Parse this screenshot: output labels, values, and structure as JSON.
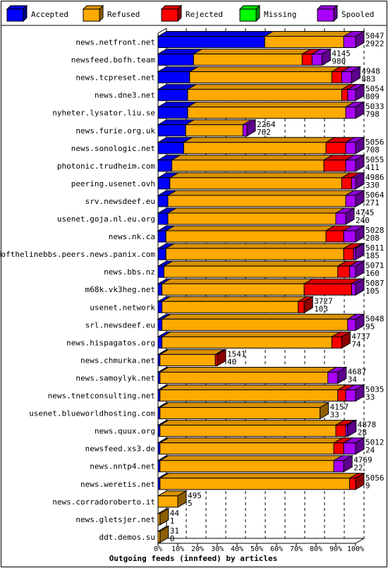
{
  "chart_data": {
    "type": "bar",
    "orientation": "horizontal",
    "stacked": true,
    "title": "",
    "xlabel": "Outgoing feeds (innfeed) by articles",
    "ylabel": "",
    "xlim": [
      0,
      100
    ],
    "x_unit": "%",
    "x_ticks": [
      "0%",
      "10%",
      "20%",
      "30%",
      "40%",
      "50%",
      "60%",
      "70%",
      "80%",
      "90%",
      "100%"
    ],
    "grid": "vertical-dashed",
    "legend_position": "top",
    "legend": [
      {
        "name": "Accepted",
        "color": "#0000ff"
      },
      {
        "name": "Refused",
        "color": "#ffaa00"
      },
      {
        "name": "Rejected",
        "color": "#ff0000"
      },
      {
        "name": "Missing",
        "color": "#00ff00"
      },
      {
        "name": "Spooled",
        "color": "#aa00ff"
      }
    ],
    "rows": [
      {
        "label": "news.netfront.net",
        "total": "5047",
        "accepted": "2922",
        "pct": [
          54,
          40,
          0,
          0,
          6
        ]
      },
      {
        "label": "newsfeed.bofh.team",
        "total": "4145",
        "accepted": "980",
        "pct": [
          18,
          55,
          5,
          0,
          5
        ]
      },
      {
        "label": "news.tcpreset.net",
        "total": "4948",
        "accepted": "883",
        "pct": [
          16,
          72,
          5,
          0,
          5
        ]
      },
      {
        "label": "news.dne3.net",
        "total": "5054",
        "accepted": "809",
        "pct": [
          15,
          78,
          3,
          0,
          4
        ]
      },
      {
        "label": "nyheter.lysator.liu.se",
        "total": "5033",
        "accepted": "798",
        "pct": [
          15,
          80,
          0,
          0,
          5
        ]
      },
      {
        "label": "news.furie.org.uk",
        "total": "2264",
        "accepted": "762",
        "pct": [
          14,
          29,
          0,
          0,
          2
        ]
      },
      {
        "label": "news.sonologic.net",
        "total": "5056",
        "accepted": "708",
        "pct": [
          13,
          72,
          10,
          0,
          5
        ]
      },
      {
        "label": "photonic.trudheim.com",
        "total": "5055",
        "accepted": "411",
        "pct": [
          7,
          77,
          11,
          0,
          5
        ]
      },
      {
        "label": "peering.usenet.ovh",
        "total": "4986",
        "accepted": "330",
        "pct": [
          6,
          87,
          5,
          0,
          2
        ]
      },
      {
        "label": "srv.newsdeef.eu",
        "total": "5064",
        "accepted": "271",
        "pct": [
          5,
          90,
          0,
          0,
          5
        ]
      },
      {
        "label": "usenet.goja.nl.eu.org",
        "total": "4745",
        "accepted": "240",
        "pct": [
          5,
          85,
          0,
          0,
          5
        ]
      },
      {
        "label": "news.nk.ca",
        "total": "5028",
        "accepted": "208",
        "pct": [
          4,
          81,
          9,
          0,
          6
        ]
      },
      {
        "label": "endofthelinebbs.peers.news.panix.com",
        "total": "5011",
        "accepted": "185",
        "pct": [
          4,
          90,
          5,
          0,
          1
        ]
      },
      {
        "label": "news.bbs.nz",
        "total": "5071",
        "accepted": "160",
        "pct": [
          3,
          88,
          6,
          0,
          3
        ]
      },
      {
        "label": "m68k.vk3heg.net",
        "total": "5087",
        "accepted": "105",
        "pct": [
          2,
          72,
          24,
          0,
          2
        ]
      },
      {
        "label": "usenet.network",
        "total": "3727",
        "accepted": "103",
        "pct": [
          2,
          69,
          3,
          0,
          0
        ]
      },
      {
        "label": "srl.newsdeef.eu",
        "total": "5048",
        "accepted": "95",
        "pct": [
          2,
          94,
          0,
          0,
          4
        ]
      },
      {
        "label": "news.hispagatos.org",
        "total": "4737",
        "accepted": "74",
        "pct": [
          2,
          86,
          5,
          0,
          0
        ]
      },
      {
        "label": "news.chmurka.net",
        "total": "1541",
        "accepted": "40",
        "pct": [
          1,
          28,
          1,
          0,
          0
        ]
      },
      {
        "label": "news.samoylyk.net",
        "total": "4687",
        "accepted": "34",
        "pct": [
          1,
          85,
          0,
          0,
          5
        ]
      },
      {
        "label": "news.tnetconsulting.net",
        "total": "5035",
        "accepted": "33",
        "pct": [
          1,
          90,
          4,
          0,
          5
        ]
      },
      {
        "label": "usenet.blueworldhosting.com",
        "total": "4157",
        "accepted": "33",
        "pct": [
          1,
          81,
          0,
          0,
          0
        ]
      },
      {
        "label": "news.quux.org",
        "total": "4878",
        "accepted": "28",
        "pct": [
          1,
          89,
          5,
          0,
          1
        ]
      },
      {
        "label": "newsfeed.xs3.de",
        "total": "5012",
        "accepted": "24",
        "pct": [
          1,
          88,
          5,
          0,
          6
        ]
      },
      {
        "label": "news.nntp4.net",
        "total": "4769",
        "accepted": "22",
        "pct": [
          1,
          88,
          0,
          0,
          5
        ]
      },
      {
        "label": "news.weretis.net",
        "total": "5056",
        "accepted": "9",
        "pct": [
          1,
          96,
          3,
          0,
          0
        ]
      },
      {
        "label": "news.corradoroberto.it",
        "total": "495",
        "accepted": "5",
        "pct": [
          0,
          10,
          0,
          0,
          0
        ]
      },
      {
        "label": "news.gletsjer.net",
        "total": "44",
        "accepted": "1",
        "pct": [
          0,
          1,
          0,
          0,
          0
        ]
      },
      {
        "label": "ddt.demos.su",
        "total": "31",
        "accepted": "0",
        "pct": [
          0,
          1,
          0,
          0,
          0
        ]
      }
    ]
  }
}
